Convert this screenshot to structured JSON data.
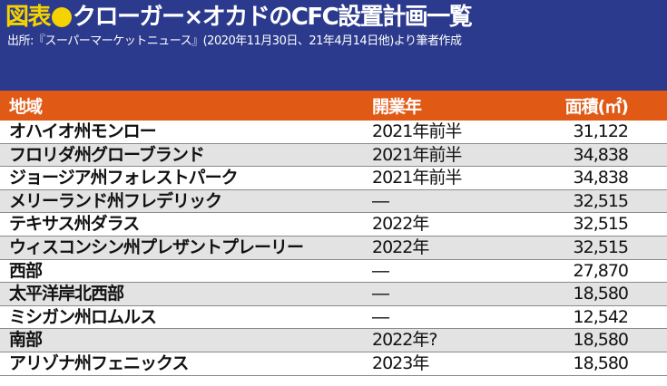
{
  "title": {
    "tag": "図表",
    "text": "クローガー×オカドのCFC設置計画一覧"
  },
  "source": "出所:『スーパーマーケットニュース』(2020年11月30日、21年4月14日他)より筆者作成",
  "table": {
    "headers": [
      "地域",
      "開業年",
      "面積(㎡)"
    ],
    "rows": [
      {
        "region": "オハイオ州モンロー",
        "year": "2021年前半",
        "area": "31,122"
      },
      {
        "region": "フロリダ州グローブランド",
        "year": "2021年前半",
        "area": "34,838"
      },
      {
        "region": "ジョージア州フォレストパーク",
        "year": "2021年前半",
        "area": "34,838"
      },
      {
        "region": "メリーランド州フレデリック",
        "year": "―",
        "area": "32,515"
      },
      {
        "region": "テキサス州ダラス",
        "year": "2022年",
        "area": "32,515"
      },
      {
        "region": "ウィスコンシン州プレザントプレーリー",
        "year": "2022年",
        "area": "32,515"
      },
      {
        "region": "西部",
        "year": "―",
        "area": "27,870"
      },
      {
        "region": "太平洋岸北西部",
        "year": "―",
        "area": "18,580"
      },
      {
        "region": "ミシガン州ロムルス",
        "year": "―",
        "area": "12,542"
      },
      {
        "region": "南部",
        "year": "2022年?",
        "area": "18,580"
      },
      {
        "region": "アリゾナ州フェニックス",
        "year": "2023年",
        "area": "18,580"
      }
    ]
  },
  "colors": {
    "header_bg": "#2b3a8c",
    "accent_yellow": "#f4d300",
    "table_header_bg": "#e05a16",
    "row_alt_bg": "#e3e3e3"
  }
}
